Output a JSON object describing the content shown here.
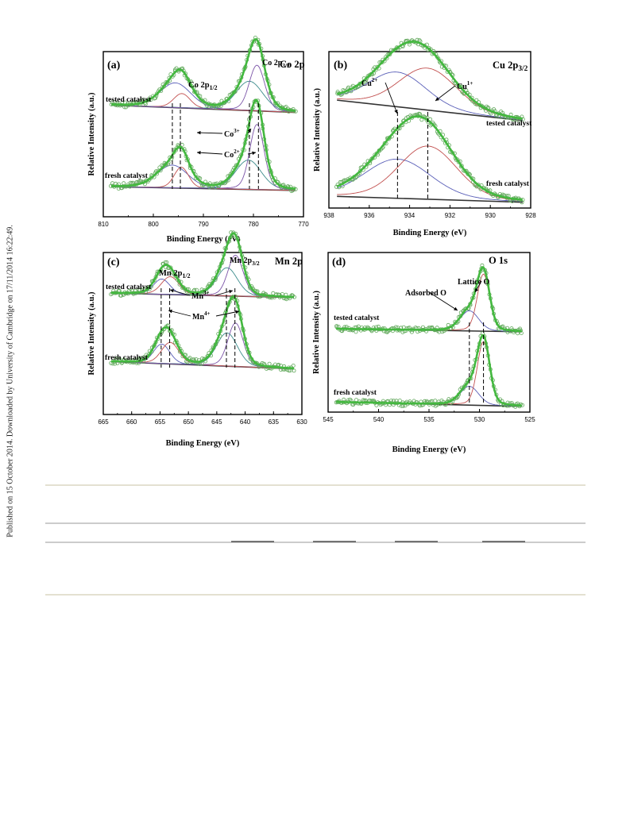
{
  "side_note": "Published on 15 October 2014. Downloaded by University of Cambridge on 17/11/2014 16:22:49.",
  "figure": {
    "y_axis_label": "Relative Intensity (a.u.)",
    "x_axis_label": "Binding Energy (eV)"
  },
  "colors": {
    "fit_envelope": "#43b83f",
    "data_points": "#62a85c",
    "background": "#333333",
    "comp_blue": "#5a5fb8",
    "comp_red": "#c2504f",
    "comp_teal": "#3c8c8c",
    "comp_purple": "#7b54a8",
    "rule_tan": "#dcd7c2",
    "rule_gray": "#9a9a9a"
  },
  "chart_data": [
    {
      "type": "line",
      "panel": "(a)",
      "element": "Co 2p",
      "xlim": [
        810,
        770
      ],
      "x_ticks": [
        "810",
        "800",
        "790",
        "780",
        "770"
      ],
      "annotations": {
        "peak_left": "Co 2p1/2",
        "peak_right": "Co 2p3/2",
        "species_1": "Co3+",
        "species_2": "Co2+"
      },
      "series": [
        {
          "name": "tested catalyst",
          "peaks": [
            {
              "x": 795.6,
              "h": 0.38,
              "w": 3.0
            },
            {
              "x": 794.3,
              "h": 0.22,
              "w": 1.6
            },
            {
              "x": 780.8,
              "h": 0.45,
              "w": 2.6
            },
            {
              "x": 779.3,
              "h": 0.7,
              "w": 1.5
            }
          ]
        },
        {
          "name": "fresh catalyst",
          "peaks": [
            {
              "x": 796.2,
              "h": 0.35,
              "w": 3.0
            },
            {
              "x": 794.4,
              "h": 0.32,
              "w": 1.4
            },
            {
              "x": 781.0,
              "h": 0.45,
              "w": 2.5
            },
            {
              "x": 779.3,
              "h": 1.0,
              "w": 1.4
            }
          ]
        }
      ],
      "marker_x": [
        796.2,
        794.6,
        780.8,
        779.0
      ]
    },
    {
      "type": "line",
      "panel": "(b)",
      "element": "Cu 2p3/2",
      "xlim": [
        938,
        928
      ],
      "x_ticks": [
        "938",
        "936",
        "934",
        "932",
        "930",
        "928"
      ],
      "annotations": {
        "species_1": "Cu2+",
        "species_2": "Cu1+"
      },
      "series": [
        {
          "name": "tested catalyst",
          "peaks": [
            {
              "x": 934.6,
              "h": 0.62,
              "w": 1.4
            },
            {
              "x": 933.1,
              "h": 0.75,
              "w": 1.4
            }
          ]
        },
        {
          "name": "fresh catalyst",
          "peaks": [
            {
              "x": 934.6,
              "h": 0.7,
              "w": 1.6
            },
            {
              "x": 933.1,
              "h": 0.95,
              "w": 1.4
            }
          ]
        }
      ],
      "marker_x": [
        934.6,
        933.1
      ]
    },
    {
      "type": "line",
      "panel": "(c)",
      "element": "Mn 2p",
      "xlim": [
        665,
        630
      ],
      "x_ticks": [
        "665",
        "660",
        "655",
        "650",
        "645",
        "640",
        "635",
        "630"
      ],
      "annotations": {
        "peak_left": "Mn 2p1/2",
        "peak_right": "Mn 2p3/2",
        "species_1": "Mn3+",
        "species_2": "Mn4+"
      },
      "series": [
        {
          "name": "tested catalyst",
          "peaks": [
            {
              "x": 654.7,
              "h": 0.3,
              "w": 1.4
            },
            {
              "x": 653.2,
              "h": 0.35,
              "w": 1.5
            },
            {
              "x": 643.2,
              "h": 0.55,
              "w": 1.8
            },
            {
              "x": 641.7,
              "h": 0.8,
              "w": 1.3
            }
          ]
        },
        {
          "name": "fresh catalyst",
          "peaks": [
            {
              "x": 654.7,
              "h": 0.38,
              "w": 1.4
            },
            {
              "x": 653.2,
              "h": 0.42,
              "w": 1.5
            },
            {
              "x": 643.2,
              "h": 0.65,
              "w": 1.8
            },
            {
              "x": 641.7,
              "h": 0.85,
              "w": 1.3
            }
          ]
        }
      ],
      "marker_x": [
        654.8,
        653.3,
        643.3,
        641.8
      ]
    },
    {
      "type": "line",
      "panel": "(d)",
      "element": "O 1s",
      "xlim": [
        545,
        525
      ],
      "x_ticks": [
        "545",
        "540",
        "535",
        "530",
        "525"
      ],
      "annotations": {
        "species_1": "Adsorbed O",
        "species_2": "Lattice O"
      },
      "series": [
        {
          "name": "tested catalyst",
          "peaks": [
            {
              "x": 531.0,
              "h": 0.3,
              "w": 0.9
            },
            {
              "x": 529.6,
              "h": 0.85,
              "w": 0.6
            }
          ]
        },
        {
          "name": "fresh catalyst",
          "peaks": [
            {
              "x": 531.0,
              "h": 0.28,
              "w": 0.9
            },
            {
              "x": 529.6,
              "h": 0.95,
              "w": 0.6
            }
          ]
        }
      ],
      "marker_x": [
        531.0,
        529.6
      ]
    }
  ]
}
